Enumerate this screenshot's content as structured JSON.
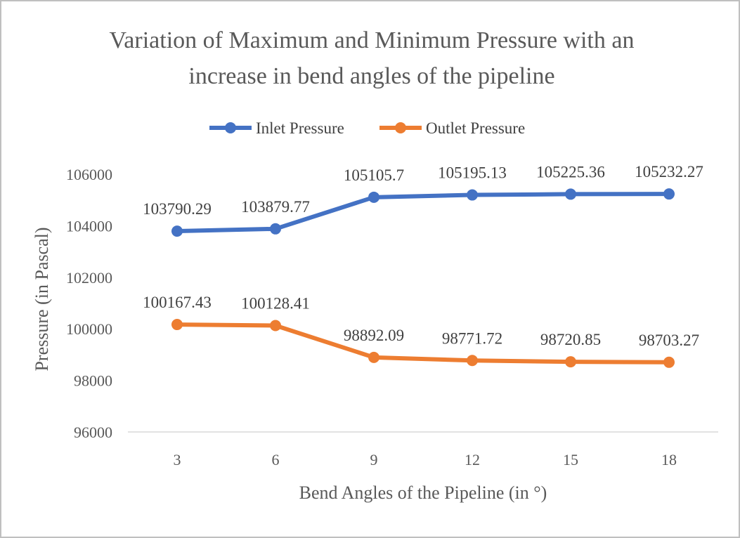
{
  "chart_data": {
    "type": "line",
    "title_line1": "Variation of Maximum and Minimum Pressure with an",
    "title_line2": "increase in bend angles of the pipeline",
    "xlabel": "Bend Angles of the Pipeline (in °)",
    "ylabel": "Pressure (in Pascal)",
    "categories": [
      "3",
      "6",
      "9",
      "12",
      "15",
      "18"
    ],
    "ylim": [
      96000,
      106000
    ],
    "yticks": [
      "96000",
      "98000",
      "100000",
      "102000",
      "104000",
      "106000"
    ],
    "grid": false,
    "legend_position": "top",
    "series": [
      {
        "name": "Inlet Pressure",
        "color": "#4472C4",
        "values": [
          103790.29,
          103879.77,
          105105.7,
          105195.13,
          105225.36,
          105232.27
        ],
        "labels": [
          "103790.29",
          "103879.77",
          "105105.7",
          "105195.13",
          "105225.36",
          "105232.27"
        ]
      },
      {
        "name": "Outlet Pressure",
        "color": "#ED7D31",
        "values": [
          100167.43,
          100128.41,
          98892.09,
          98771.72,
          98720.85,
          98703.27
        ],
        "labels": [
          "100167.43",
          "100128.41",
          "98892.09",
          "98771.72",
          "98720.85",
          "98703.27"
        ]
      }
    ]
  }
}
